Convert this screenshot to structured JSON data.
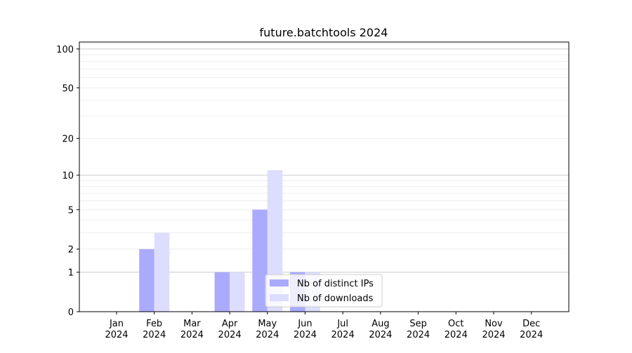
{
  "chart_data": {
    "type": "bar",
    "title": "future.batchtools 2024",
    "xlabel": "",
    "ylabel": "",
    "y_scale": "log(1+y)",
    "ylim": [
      0,
      113
    ],
    "y_ticks": [
      0,
      1,
      2,
      5,
      10,
      20,
      50,
      100
    ],
    "grid": true,
    "legend_placement": "bottom-center",
    "categories": [
      "Jan\n2024",
      "Feb\n2024",
      "Mar\n2024",
      "Apr\n2024",
      "May\n2024",
      "Jun\n2024",
      "Jul\n2024",
      "Aug\n2024",
      "Sep\n2024",
      "Oct\n2024",
      "Nov\n2024",
      "Dec\n2024"
    ],
    "series": [
      {
        "name": "Nb of distinct IPs",
        "color": "#aaaaff",
        "values": [
          0,
          2,
          0,
          1,
          5,
          1,
          0,
          0,
          0,
          0,
          0,
          0
        ]
      },
      {
        "name": "Nb of downloads",
        "color": "#ddddff",
        "values": [
          0,
          3,
          0,
          1,
          11,
          1,
          0,
          0,
          0,
          0,
          0,
          0
        ]
      }
    ]
  }
}
